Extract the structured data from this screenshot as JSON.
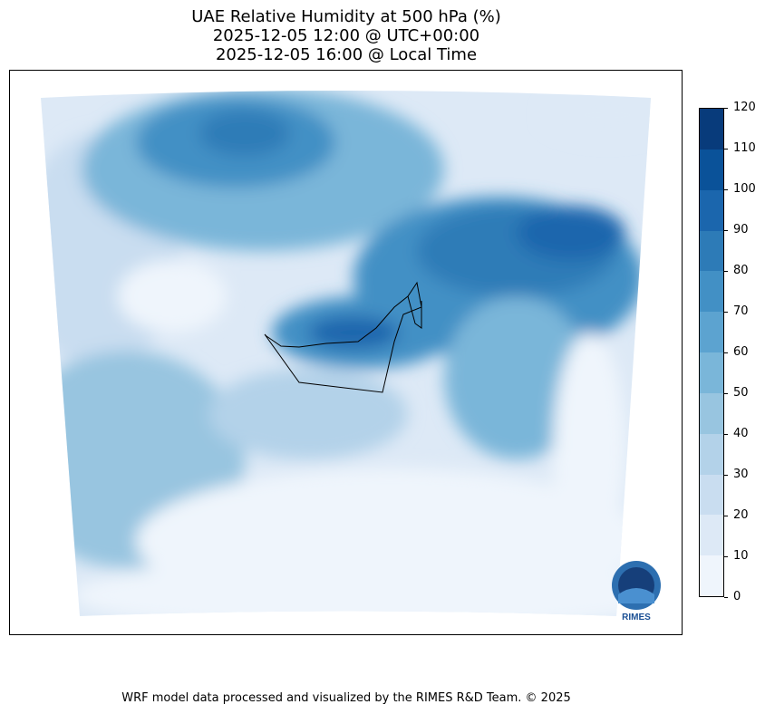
{
  "title": {
    "line1": "UAE Relative Humidity at 500 hPa (%)",
    "line2": "2025-12-05 12:00 @ UTC+00:00",
    "line3": "2025-12-05 16:00 @ Local Time"
  },
  "colorbar": {
    "levels": [
      0,
      10,
      20,
      30,
      40,
      50,
      60,
      70,
      80,
      90,
      100,
      110,
      120
    ],
    "tick_labels": [
      "0",
      "10",
      "20",
      "30",
      "40",
      "50",
      "60",
      "70",
      "80",
      "90",
      "100",
      "110",
      "120"
    ],
    "colors": [
      "#eff5fc",
      "#dde9f6",
      "#c9ddf0",
      "#b3d2e9",
      "#98c5e0",
      "#7ab6d9",
      "#5ca3d0",
      "#4290c5",
      "#2d7bb7",
      "#1b66ad",
      "#0a5299",
      "#083b7b"
    ]
  },
  "logo": {
    "text": "RIMES"
  },
  "footer": "WRF model data processed and visualized by the RIMES R&D Team. © 2025"
}
